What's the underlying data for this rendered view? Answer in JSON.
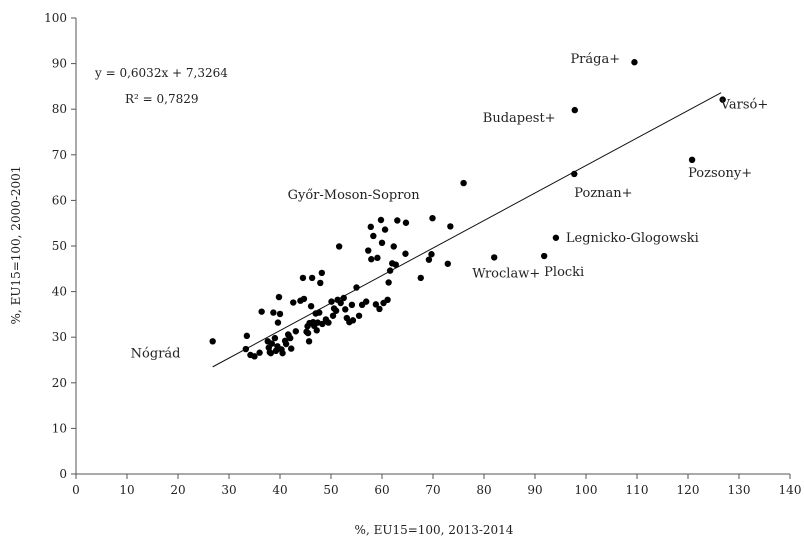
{
  "chart_data": {
    "type": "scatter",
    "xlabel": "%, EU15=100, 2013-2014",
    "ylabel": "%, EU15=100,  2000-2001",
    "xlim": [
      0,
      140
    ],
    "ylim": [
      0,
      100
    ],
    "x_ticks": [
      "0",
      "10",
      "20",
      "30",
      "40",
      "50",
      "60",
      "70",
      "80",
      "90",
      "100",
      "110",
      "120",
      "130",
      "140"
    ],
    "y_ticks": [
      "0",
      "10",
      "20",
      "30",
      "40",
      "50",
      "60",
      "70",
      "80",
      "90",
      "100"
    ],
    "grid": false,
    "trendline": {
      "equation": "y = 0,6032x + 7,3264",
      "r2": "R² = 0,7829",
      "slope": 0.6032,
      "intercept": 7.3264,
      "x_range": [
        26.8,
        126.5
      ]
    },
    "annotations": [
      {
        "text": "Prága+",
        "x": 109.5,
        "y": 90.3
      },
      {
        "text": "Varsó+",
        "x": 126.8,
        "y": 82.1
      },
      {
        "text": "Budapest+",
        "x": 97.8,
        "y": 79.8
      },
      {
        "text": "Pozsony+",
        "x": 120.8,
        "y": 68.9
      },
      {
        "text": "Poznan+",
        "x": 97.7,
        "y": 65.8
      },
      {
        "text": "Győr-Moson-Sopron",
        "x": 76.0,
        "y": 63.8
      },
      {
        "text": "Legnicko-Glogowski",
        "x": 94.1,
        "y": 51.8
      },
      {
        "text": "Plocki",
        "x": 91.8,
        "y": 47.8
      },
      {
        "text": "Wroclaw+",
        "x": 82.0,
        "y": 47.5
      },
      {
        "text": "Nógrád",
        "x": 26.8,
        "y": 29.1
      }
    ],
    "points": [
      [
        109.5,
        90.3
      ],
      [
        126.8,
        82.1
      ],
      [
        97.8,
        79.8
      ],
      [
        120.8,
        68.9
      ],
      [
        97.7,
        65.8
      ],
      [
        76.0,
        63.8
      ],
      [
        94.1,
        51.8
      ],
      [
        91.8,
        47.8
      ],
      [
        82.0,
        47.5
      ],
      [
        26.8,
        29.1
      ],
      [
        33.3,
        27.4
      ],
      [
        33.5,
        30.3
      ],
      [
        34.2,
        26.1
      ],
      [
        35.0,
        25.8
      ],
      [
        36.0,
        26.6
      ],
      [
        36.4,
        35.6
      ],
      [
        37.6,
        29.1
      ],
      [
        37.8,
        27.7
      ],
      [
        38.0,
        26.7
      ],
      [
        38.2,
        26.5
      ],
      [
        38.4,
        28.6
      ],
      [
        38.7,
        35.4
      ],
      [
        39.0,
        29.8
      ],
      [
        39.2,
        27.0
      ],
      [
        39.5,
        28.0
      ],
      [
        39.6,
        33.2
      ],
      [
        39.8,
        38.8
      ],
      [
        40.0,
        35.1
      ],
      [
        40.3,
        27.3
      ],
      [
        40.5,
        26.5
      ],
      [
        41.0,
        29.2
      ],
      [
        41.2,
        28.5
      ],
      [
        41.6,
        30.6
      ],
      [
        41.7,
        30.4
      ],
      [
        42.0,
        29.8
      ],
      [
        42.2,
        27.5
      ],
      [
        42.6,
        37.6
      ],
      [
        43.1,
        31.3
      ],
      [
        44.0,
        38.0
      ],
      [
        44.5,
        43.0
      ],
      [
        44.7,
        38.4
      ],
      [
        45.2,
        31.2
      ],
      [
        45.4,
        32.4
      ],
      [
        45.5,
        30.9
      ],
      [
        45.7,
        29.1
      ],
      [
        45.8,
        33.1
      ],
      [
        46.1,
        36.8
      ],
      [
        46.3,
        43.0
      ],
      [
        46.5,
        33.3
      ],
      [
        46.7,
        32.5
      ],
      [
        47.0,
        35.2
      ],
      [
        47.2,
        31.5
      ],
      [
        47.4,
        33.2
      ],
      [
        47.7,
        35.4
      ],
      [
        47.9,
        41.9
      ],
      [
        48.2,
        44.1
      ],
      [
        48.3,
        32.9
      ],
      [
        49.0,
        33.9
      ],
      [
        49.5,
        33.2
      ],
      [
        50.1,
        37.8
      ],
      [
        50.4,
        34.7
      ],
      [
        50.6,
        36.3
      ],
      [
        51.0,
        35.8
      ],
      [
        51.3,
        38.2
      ],
      [
        51.6,
        49.9
      ],
      [
        51.9,
        37.5
      ],
      [
        52.5,
        38.6
      ],
      [
        52.8,
        36.1
      ],
      [
        53.1,
        34.2
      ],
      [
        53.6,
        33.3
      ],
      [
        54.1,
        37.1
      ],
      [
        54.3,
        33.7
      ],
      [
        55.0,
        40.9
      ],
      [
        55.5,
        34.7
      ],
      [
        56.1,
        37.1
      ],
      [
        56.9,
        37.8
      ],
      [
        57.3,
        49.0
      ],
      [
        57.8,
        54.2
      ],
      [
        57.9,
        47.1
      ],
      [
        58.3,
        52.2
      ],
      [
        58.8,
        37.2
      ],
      [
        59.1,
        47.4
      ],
      [
        59.5,
        36.2
      ],
      [
        59.8,
        55.7
      ],
      [
        60.0,
        50.7
      ],
      [
        60.3,
        37.5
      ],
      [
        60.6,
        53.6
      ],
      [
        61.1,
        38.2
      ],
      [
        61.3,
        42.0
      ],
      [
        61.6,
        44.6
      ],
      [
        62.0,
        46.2
      ],
      [
        62.3,
        49.9
      ],
      [
        62.7,
        45.9
      ],
      [
        63.0,
        55.6
      ],
      [
        64.6,
        48.3
      ],
      [
        64.7,
        55.1
      ],
      [
        67.6,
        43.0
      ],
      [
        69.2,
        47.0
      ],
      [
        69.7,
        48.2
      ],
      [
        69.9,
        56.1
      ],
      [
        72.9,
        46.1
      ],
      [
        73.4,
        54.3
      ]
    ]
  }
}
